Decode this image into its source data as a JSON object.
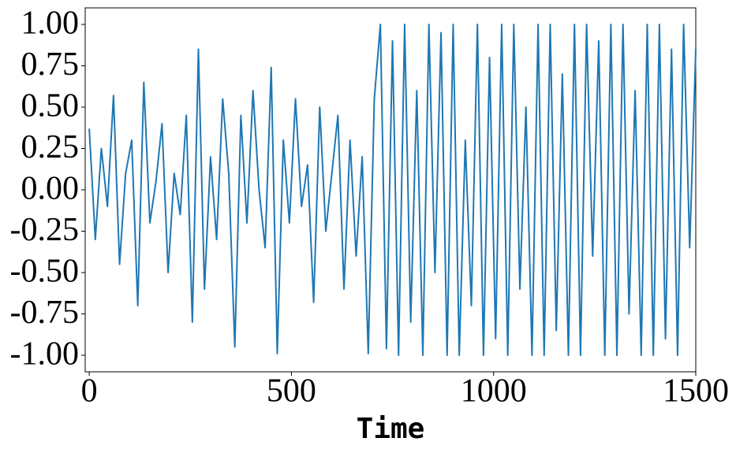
{
  "chart_data": {
    "type": "line",
    "x_label": "Time",
    "x": [
      0,
      15,
      30,
      45,
      60,
      75,
      90,
      105,
      120,
      135,
      150,
      165,
      180,
      195,
      210,
      225,
      240,
      255,
      270,
      285,
      300,
      315,
      330,
      345,
      360,
      375,
      390,
      405,
      420,
      435,
      450,
      465,
      480,
      495,
      510,
      525,
      540,
      555,
      570,
      585,
      600,
      615,
      630,
      645,
      660,
      675,
      690,
      705,
      720,
      735,
      750,
      765,
      780,
      795,
      810,
      825,
      840,
      855,
      870,
      885,
      900,
      915,
      930,
      945,
      960,
      975,
      990,
      1005,
      1020,
      1035,
      1050,
      1065,
      1080,
      1095,
      1110,
      1125,
      1140,
      1155,
      1170,
      1185,
      1200,
      1215,
      1230,
      1245,
      1260,
      1275,
      1290,
      1305,
      1320,
      1335,
      1350,
      1365,
      1380,
      1395,
      1410,
      1425,
      1440,
      1455,
      1470,
      1485,
      1500
    ],
    "series": [
      {
        "color": "#1f77b4",
        "values": [
          0.37,
          -0.3,
          0.25,
          -0.1,
          0.57,
          -0.45,
          0.1,
          0.3,
          -0.7,
          0.65,
          -0.2,
          0.05,
          0.4,
          -0.5,
          0.1,
          -0.15,
          0.45,
          -0.8,
          0.85,
          -0.6,
          0.2,
          -0.3,
          0.55,
          0.1,
          -0.95,
          0.45,
          -0.2,
          0.6,
          0.0,
          -0.35,
          0.74,
          -0.99,
          0.3,
          -0.2,
          0.55,
          -0.1,
          0.15,
          -0.68,
          0.5,
          -0.25,
          0.1,
          0.45,
          -0.6,
          0.3,
          -0.4,
          0.2,
          -0.99,
          0.55,
          1.0,
          -0.96,
          0.9,
          -1.0,
          1.0,
          -0.8,
          0.6,
          -1.0,
          1.0,
          -0.5,
          0.95,
          -1.0,
          1.0,
          -1.0,
          0.3,
          -0.7,
          1.0,
          -1.0,
          0.8,
          -0.9,
          1.0,
          -1.0,
          1.0,
          -0.6,
          0.5,
          -1.0,
          1.0,
          -1.0,
          1.0,
          -0.85,
          0.7,
          -1.0,
          1.0,
          -1.0,
          1.0,
          -0.4,
          0.9,
          -1.0,
          1.0,
          -1.0,
          1.0,
          -0.75,
          0.6,
          -1.0,
          1.0,
          -1.0,
          1.0,
          -0.9,
          0.85,
          -1.0,
          1.0,
          -0.35,
          0.85
        ]
      }
    ],
    "xlim": [
      -10,
      1500
    ],
    "xticks": [
      0,
      500,
      1000,
      1500
    ],
    "ylim": [
      -1.1,
      1.1
    ],
    "yticks": [
      {
        "value": -1,
        "label": "-1.00"
      },
      {
        "value": -0.75,
        "label": "-0.75"
      },
      {
        "value": -0.5,
        "label": "-0.50"
      },
      {
        "value": -0.25,
        "label": "-0.25"
      },
      {
        "value": 0,
        "label": "0.00"
      },
      {
        "value": 0.25,
        "label": "0.25"
      },
      {
        "value": 0.5,
        "label": "0.50"
      },
      {
        "value": 0.75,
        "label": "0.75"
      },
      {
        "value": 1,
        "label": "1.00"
      }
    ]
  }
}
